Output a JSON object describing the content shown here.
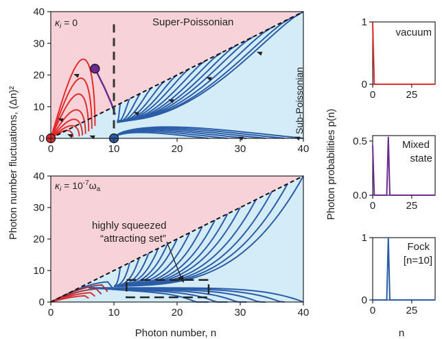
{
  "colors": {
    "super_fill": "#f7d3d9",
    "sub_fill": "#d3ecf8",
    "blue": "#2b5ca8",
    "red": "#e32b2b",
    "purple": "#6b2b8f",
    "darkred": "#a8323c",
    "dash": "#333333"
  },
  "axes_text": {
    "y_label_main": "Photon number fluctuations, (Δn)²",
    "x_label_main": "Photon number, n",
    "y_label_right": "Photon probabilities p(n)",
    "x_label_right": "n"
  },
  "chart_data": [
    {
      "type": "line",
      "panel": "top-left",
      "annotation_kappa_main": "κ",
      "annotation_kappa_sub": "i",
      "annotation_kappa_rest": " = 0",
      "region_labels": {
        "super": "Super-Poissonian",
        "sub": "Sub-Poissonian"
      },
      "xlim": [
        0,
        40
      ],
      "ylim": [
        0,
        40
      ],
      "xticks": [
        0,
        10,
        20,
        30,
        40
      ],
      "yticks": [
        0,
        10,
        20,
        30,
        40
      ],
      "boundary": "variance = n (Poissonian line)",
      "markers": [
        {
          "name": "vacuum",
          "x": 0,
          "y": 0,
          "color": "red"
        },
        {
          "name": "fock",
          "x": 10,
          "y": 0,
          "color": "blue"
        },
        {
          "name": "mixed",
          "x": 7,
          "y": 22,
          "color": "purple"
        }
      ],
      "vertical_dashed_x": 10
    },
    {
      "type": "line",
      "panel": "bottom-left",
      "annotation_kappa_main": "κ",
      "annotation_kappa_sub": "i",
      "annotation_kappa_rest": " = 10",
      "annotation_kappa_exp": "-7",
      "annotation_kappa_omega": "ω",
      "annotation_kappa_omega_sub": "a",
      "annotation_line1": "highly squeezed",
      "annotation_line2": "“attracting set”",
      "xlim": [
        0,
        40
      ],
      "ylim": [
        0,
        40
      ],
      "xticks": [
        0,
        10,
        20,
        30,
        40
      ],
      "yticks": [
        0,
        10,
        20,
        30,
        40
      ],
      "box_x": [
        12,
        25
      ],
      "box_y": [
        1.5,
        7
      ]
    },
    {
      "type": "line",
      "panel": "right-1",
      "label": "vacuum",
      "color": "red",
      "xlim": [
        0,
        40
      ],
      "ylim": [
        0,
        1
      ],
      "xticks": [
        0,
        25
      ],
      "yticks": [
        0,
        1
      ],
      "x": [
        0,
        1,
        2,
        40
      ],
      "values": [
        1,
        0,
        0,
        0
      ]
    },
    {
      "type": "line",
      "panel": "right-2",
      "label_line1": "Mixed",
      "label_line2": "state",
      "color": "purple",
      "xlim": [
        0,
        40
      ],
      "ylim": [
        0,
        0.55
      ],
      "xticks": [
        0,
        25
      ],
      "yticks": [
        "0.0",
        "0.5"
      ],
      "x": [
        0,
        1,
        9,
        10,
        11,
        40
      ],
      "values": [
        0.46,
        0,
        0,
        0.54,
        0,
        0
      ]
    },
    {
      "type": "line",
      "panel": "right-3",
      "label_line1": "Fock",
      "label_line2": "[n=10]",
      "color": "blue",
      "xlim": [
        0,
        40
      ],
      "ylim": [
        0,
        1
      ],
      "xticks": [
        0,
        25
      ],
      "yticks": [
        0,
        1
      ],
      "x": [
        0,
        9,
        10,
        11,
        40
      ],
      "values": [
        0,
        0,
        1,
        0,
        0
      ]
    }
  ]
}
